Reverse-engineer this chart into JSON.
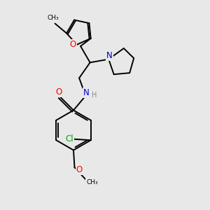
{
  "bg_color": "#e8e8e8",
  "bond_color": "#000000",
  "atom_colors": {
    "O": "#ff0000",
    "N": "#0000cc",
    "Cl": "#00aa00",
    "C": "#000000",
    "H": "#888888"
  },
  "font_size": 8.5,
  "small_font_size": 7.0
}
